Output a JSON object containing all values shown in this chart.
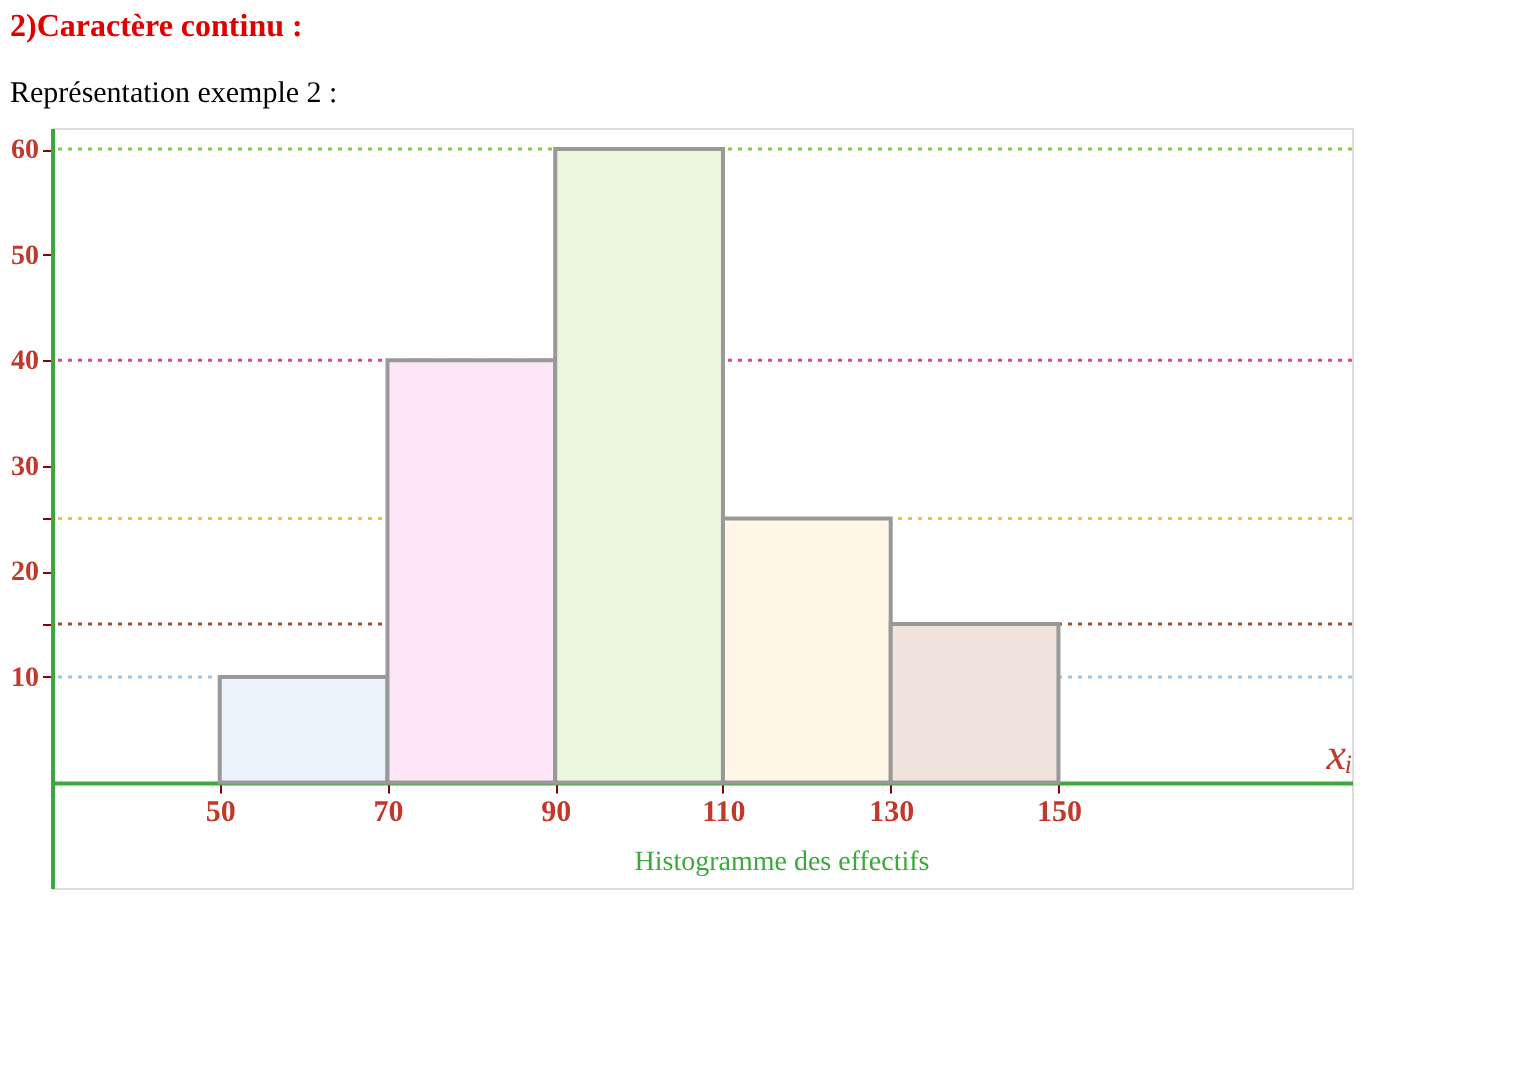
{
  "chart_data": {
    "type": "histogram",
    "title": "2)Caractère continu :",
    "subtitle": "Représentation exemple 2 :",
    "xlabel": "xᵢ",
    "annotations": [
      "Histogramme des effectifs"
    ],
    "bins": [
      50,
      70,
      90,
      110,
      130,
      150
    ],
    "values": [
      10,
      40,
      60,
      25,
      15
    ],
    "colors": [
      "#eaf3fb",
      "#fde6f7",
      "#eaf7dd",
      "#fff6e6",
      "#f1e4dc"
    ],
    "xlim": [
      30,
      185
    ],
    "xticks": [
      50,
      70,
      90,
      110,
      130,
      150
    ],
    "ylim": [
      -10,
      62
    ],
    "yticks": [
      10,
      {
        "value": 15,
        "label": null
      },
      20,
      {
        "value": 25,
        "label": null
      },
      30,
      40,
      50,
      60
    ],
    "ref_lines": [
      {
        "axis": "y",
        "value": 10,
        "color": "#9dc3e6",
        "line_style": "dotted"
      },
      {
        "axis": "y",
        "value": 40,
        "color": "#e040a0",
        "line_style": "dotted"
      },
      {
        "axis": "y",
        "value": 60,
        "color": "#7fcc3f",
        "line_style": "dotted"
      },
      {
        "axis": "y",
        "value": 25,
        "color": "#f0c040",
        "line_style": "dotted"
      },
      {
        "axis": "y",
        "value": 15,
        "color": "#a0522d",
        "line_style": "dotted"
      }
    ],
    "grid": false
  }
}
